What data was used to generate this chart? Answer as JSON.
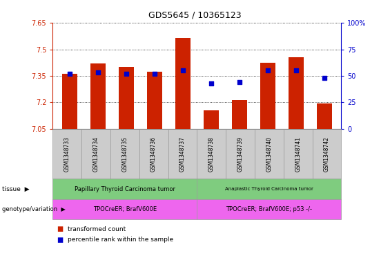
{
  "title": "GDS5645 / 10365123",
  "samples": [
    "GSM1348733",
    "GSM1348734",
    "GSM1348735",
    "GSM1348736",
    "GSM1348737",
    "GSM1348738",
    "GSM1348739",
    "GSM1348740",
    "GSM1348741",
    "GSM1348742"
  ],
  "transformed_count": [
    7.36,
    7.42,
    7.4,
    7.375,
    7.565,
    7.155,
    7.215,
    7.425,
    7.455,
    7.195
  ],
  "percentile_rank": [
    52,
    53,
    52,
    52,
    55,
    43,
    44,
    55,
    55,
    48
  ],
  "ymin": 7.05,
  "ymax": 7.65,
  "yticks": [
    7.05,
    7.2,
    7.35,
    7.5,
    7.65
  ],
  "ytick_labels": [
    "7.05",
    "7.2",
    "7.35",
    "7.5",
    "7.65"
  ],
  "y2min": 0,
  "y2max": 100,
  "y2ticks": [
    0,
    25,
    50,
    75,
    100
  ],
  "y2tick_labels": [
    "0",
    "25",
    "50",
    "75",
    "100%"
  ],
  "bar_color": "#cc2200",
  "percentile_color": "#0000cc",
  "tissue_labels": [
    "Papillary Thyroid Carcinoma tumor",
    "Anaplastic Thyroid Carcinoma tumor"
  ],
  "tissue_starts": [
    0,
    5
  ],
  "tissue_ends": [
    5,
    10
  ],
  "tissue_color": "#7fcc7f",
  "genotype_labels": [
    "TPOCreER; BrafV600E",
    "TPOCreER; BrafV600E; p53 -/-"
  ],
  "genotype_starts": [
    0,
    5
  ],
  "genotype_ends": [
    5,
    10
  ],
  "genotype_color": "#ee66ee",
  "bar_color_legend": "#cc2200",
  "pct_color_legend": "#0000cc",
  "legend_label1": "transformed count",
  "legend_label2": "percentile rank within the sample",
  "row_label_tissue": "tissue",
  "row_label_geno": "genotype/variation",
  "arrow": "▶",
  "axis_left_color": "#cc2200",
  "axis_right_color": "#0000cc",
  "sample_bg_color": "#cccccc",
  "bar_width": 0.55
}
